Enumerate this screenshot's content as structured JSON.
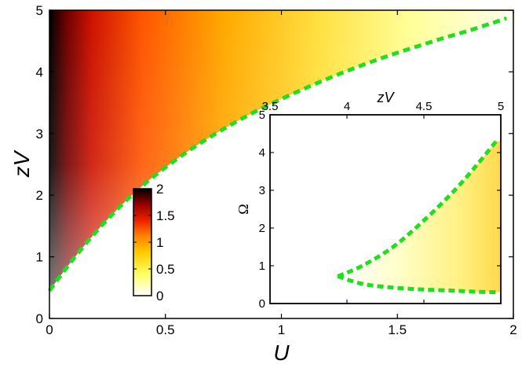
{
  "chart_data": [
    {
      "type": "heatmap",
      "xlabel": "U",
      "ylabel": "zV",
      "xlim": [
        0,
        2
      ],
      "ylim": [
        0,
        5
      ],
      "xticks": [
        "0",
        "0.5",
        "1",
        "1.5",
        "2"
      ],
      "yticks": [
        "0",
        "1",
        "2",
        "3",
        "4",
        "5"
      ],
      "boundary_curve": {
        "color": "#22dd22",
        "style": "dashed",
        "x": [
          0,
          0.1,
          0.2,
          0.3,
          0.4,
          0.5,
          0.6,
          0.7,
          0.8,
          0.9,
          1.0,
          1.1,
          1.2,
          1.3,
          1.4,
          1.5,
          1.6,
          1.7,
          1.8,
          1.9,
          1.97
        ],
        "y": [
          0.45,
          0.95,
          1.4,
          1.8,
          2.15,
          2.45,
          2.72,
          2.96,
          3.18,
          3.38,
          3.56,
          3.73,
          3.89,
          4.04,
          4.18,
          4.31,
          4.43,
          4.55,
          4.66,
          4.78,
          4.87
        ]
      },
      "colorbar": {
        "ticks": [
          "0",
          "0.5",
          "1",
          "1.5",
          "2"
        ],
        "range": [
          0,
          2
        ],
        "colormap": [
          "#ffffff",
          "#ffff66",
          "#ffcc00",
          "#ff8800",
          "#ee2200",
          "#990000",
          "#000000"
        ]
      }
    },
    {
      "type": "heatmap",
      "xlabel": "zV",
      "ylabel": "Ω",
      "xlim": [
        3.5,
        5
      ],
      "ylim": [
        0,
        5
      ],
      "xticks": [
        "3.5",
        "4",
        "4.5",
        "5"
      ],
      "yticks": [
        "0",
        "1",
        "2",
        "3",
        "4",
        "5"
      ],
      "upper_boundary": {
        "x": [
          3.94,
          4.1,
          4.3,
          4.5,
          4.7,
          4.85,
          4.97
        ],
        "y": [
          0.72,
          1.0,
          1.5,
          2.2,
          3.0,
          3.7,
          4.3
        ]
      },
      "lower_boundary": {
        "x": [
          3.94,
          4.1,
          4.3,
          4.5,
          4.7,
          4.85,
          4.97
        ],
        "y": [
          0.72,
          0.52,
          0.42,
          0.37,
          0.34,
          0.31,
          0.3
        ]
      }
    }
  ]
}
